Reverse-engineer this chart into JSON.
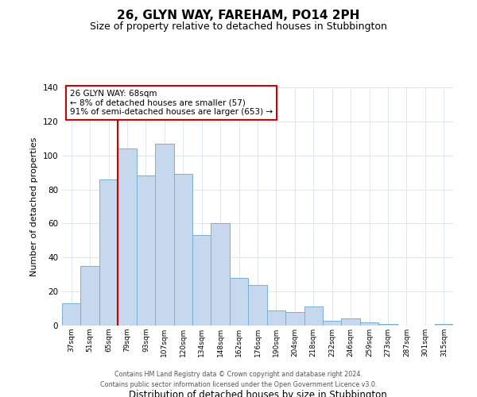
{
  "title": "26, GLYN WAY, FAREHAM, PO14 2PH",
  "subtitle": "Size of property relative to detached houses in Stubbington",
  "xlabel": "Distribution of detached houses by size in Stubbington",
  "ylabel": "Number of detached properties",
  "bar_labels": [
    "37sqm",
    "51sqm",
    "65sqm",
    "79sqm",
    "93sqm",
    "107sqm",
    "120sqm",
    "134sqm",
    "148sqm",
    "162sqm",
    "176sqm",
    "190sqm",
    "204sqm",
    "218sqm",
    "232sqm",
    "246sqm",
    "259sqm",
    "273sqm",
    "287sqm",
    "301sqm",
    "315sqm"
  ],
  "bar_values": [
    13,
    35,
    86,
    104,
    88,
    107,
    89,
    53,
    60,
    28,
    24,
    9,
    8,
    11,
    3,
    4,
    2,
    1,
    0,
    0,
    1
  ],
  "bar_color": "#c5d8ee",
  "bar_edge_color": "#7bafd4",
  "ylim": [
    0,
    140
  ],
  "yticks": [
    0,
    20,
    40,
    60,
    80,
    100,
    120,
    140
  ],
  "vline_color": "#cc0000",
  "annotation_title": "26 GLYN WAY: 68sqm",
  "annotation_line1": "← 8% of detached houses are smaller (57)",
  "annotation_line2": "91% of semi-detached houses are larger (653) →",
  "annotation_box_color": "#cc0000",
  "footer_line1": "Contains HM Land Registry data © Crown copyright and database right 2024.",
  "footer_line2": "Contains public sector information licensed under the Open Government Licence v3.0.",
  "background_color": "#ffffff",
  "grid_color": "#dce6f1"
}
